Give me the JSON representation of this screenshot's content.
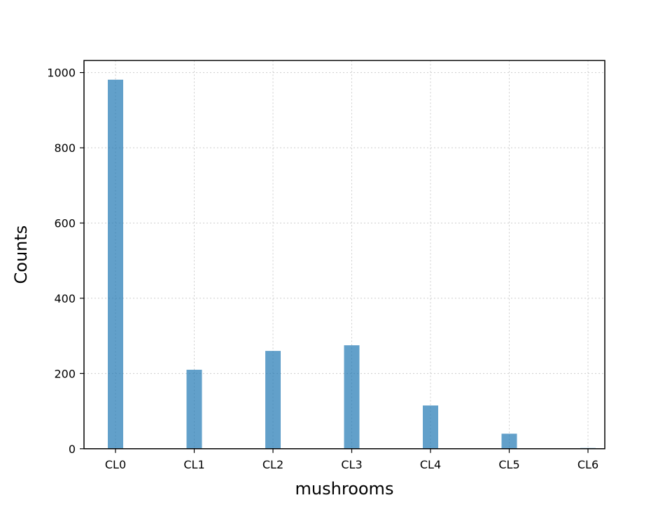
{
  "chart_data": {
    "type": "bar",
    "title": "",
    "xlabel": "mushrooms",
    "ylabel": "Counts",
    "categories": [
      "CL0",
      "CL1",
      "CL2",
      "CL3",
      "CL4",
      "CL5",
      "CL6"
    ],
    "values": [
      981,
      210,
      260,
      275,
      115,
      40,
      2
    ],
    "ylim": [
      0,
      1032
    ],
    "yticks": [
      0,
      200,
      400,
      600,
      800,
      1000
    ],
    "grid": true,
    "legend": "none",
    "bar_color": "#1f77b4",
    "bar_opacity": 0.7
  }
}
